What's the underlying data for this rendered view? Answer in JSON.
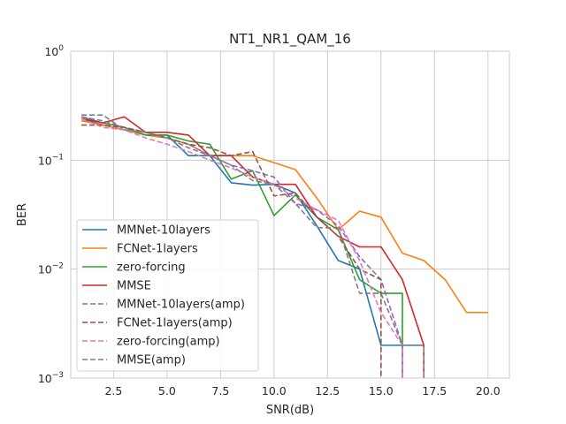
{
  "chart_data": {
    "type": "line",
    "title": "NT1_NR1_QAM_16",
    "xlabel": "SNR(dB)",
    "ylabel": "BER",
    "xlim": [
      0.5,
      21.0
    ],
    "ylim": [
      0.001,
      1.0
    ],
    "yscale": "log",
    "xticks": [
      2.5,
      5.0,
      7.5,
      10.0,
      12.5,
      15.0,
      17.5,
      20.0
    ],
    "xtick_labels": [
      "2.5",
      "5.0",
      "7.5",
      "10.0",
      "12.5",
      "15.0",
      "17.5",
      "20.0"
    ],
    "yticks": [
      0.001,
      0.01,
      0.1,
      1
    ],
    "ytick_labels": [
      {
        "base": "10",
        "exp": "−3"
      },
      {
        "base": "10",
        "exp": "−2"
      },
      {
        "base": "10",
        "exp": "−1"
      },
      {
        "base": "10",
        "exp": "0"
      }
    ],
    "grid": true,
    "legend_position": "lower-left",
    "series": [
      {
        "name": "MMNet-10layers",
        "color": "#1f77b4",
        "dash": "solid",
        "x": [
          1,
          2,
          3,
          4,
          5,
          6,
          7,
          8,
          9,
          10,
          11,
          12,
          13,
          14,
          15,
          16,
          17
        ],
        "y": [
          0.24,
          0.21,
          0.19,
          0.17,
          0.17,
          0.11,
          0.11,
          0.062,
          0.059,
          0.06,
          0.05,
          0.025,
          0.012,
          0.01,
          0.002,
          0.002,
          0.002
        ]
      },
      {
        "name": "FCNet-1layers",
        "color": "#ff7f0e",
        "dash": "solid",
        "x": [
          1,
          2,
          3,
          4,
          5,
          6,
          7,
          8,
          9,
          10,
          11,
          12,
          13,
          14,
          15,
          16,
          17,
          18,
          19,
          20
        ],
        "y": [
          0.23,
          0.21,
          0.19,
          0.17,
          0.16,
          0.14,
          0.11,
          0.11,
          0.11,
          0.095,
          0.082,
          0.045,
          0.023,
          0.034,
          0.03,
          0.014,
          0.012,
          0.008,
          0.004,
          0.004
        ]
      },
      {
        "name": "zero-forcing",
        "color": "#2ca02c",
        "dash": "solid",
        "x": [
          1,
          2,
          3,
          4,
          5,
          6,
          7,
          8,
          9,
          10,
          11,
          12,
          13,
          14,
          15,
          16,
          16
        ],
        "y": [
          0.25,
          0.22,
          0.2,
          0.17,
          0.17,
          0.15,
          0.14,
          0.067,
          0.08,
          0.031,
          0.048,
          0.03,
          0.023,
          0.008,
          0.006,
          0.006,
          0.001
        ]
      },
      {
        "name": "MMSE",
        "color": "#d62728",
        "dash": "solid",
        "x": [
          1,
          2,
          3,
          4,
          5,
          6,
          7,
          8,
          9,
          10,
          11,
          12,
          13,
          14,
          15,
          16,
          17,
          17
        ],
        "y": [
          0.24,
          0.22,
          0.25,
          0.18,
          0.18,
          0.17,
          0.11,
          0.11,
          0.07,
          0.06,
          0.06,
          0.03,
          0.02,
          0.016,
          0.016,
          0.008,
          0.002,
          0.001
        ]
      },
      {
        "name": "MMNet-10layers(amp)",
        "color": "#9467bd",
        "dash": "dashed",
        "x": [
          1,
          2,
          3,
          4,
          5,
          6,
          7,
          8,
          9,
          10,
          11,
          12,
          13,
          14,
          15,
          16,
          16
        ],
        "y": [
          0.25,
          0.23,
          0.2,
          0.18,
          0.16,
          0.14,
          0.11,
          0.09,
          0.08,
          0.07,
          0.04,
          0.035,
          0.025,
          0.013,
          0.008,
          0.002,
          0.001
        ]
      },
      {
        "name": "FCNet-1layers(amp)",
        "color": "#8c564b",
        "dash": "dashed",
        "x": [
          1,
          2,
          3,
          4,
          5,
          6,
          7,
          8,
          9,
          10,
          11,
          12,
          13,
          14,
          15,
          15
        ],
        "y": [
          0.21,
          0.21,
          0.2,
          0.18,
          0.16,
          0.14,
          0.13,
          0.11,
          0.12,
          0.047,
          0.05,
          0.03,
          0.02,
          0.01,
          0.008,
          0.001
        ]
      },
      {
        "name": "zero-forcing(amp)",
        "color": "#e377c2",
        "dash": "dashed",
        "x": [
          1,
          2,
          3,
          4,
          5,
          6,
          7,
          8,
          9,
          10,
          11,
          12,
          13,
          14,
          15,
          16,
          16
        ],
        "y": [
          0.24,
          0.2,
          0.19,
          0.16,
          0.14,
          0.12,
          0.1,
          0.085,
          0.07,
          0.06,
          0.045,
          0.035,
          0.028,
          0.012,
          0.004,
          0.002,
          0.001
        ]
      },
      {
        "name": "MMSE(amp)",
        "color": "#7f7f7f",
        "dash": "dashed",
        "x": [
          1,
          2,
          3,
          4,
          5,
          6,
          7,
          8,
          9,
          10,
          11,
          12,
          13,
          14,
          15,
          16,
          17,
          17
        ],
        "y": [
          0.26,
          0.26,
          0.19,
          0.18,
          0.16,
          0.13,
          0.11,
          0.09,
          0.065,
          0.06,
          0.04,
          0.024,
          0.024,
          0.006,
          0.006,
          0.002,
          0.002,
          0.001
        ]
      }
    ]
  }
}
